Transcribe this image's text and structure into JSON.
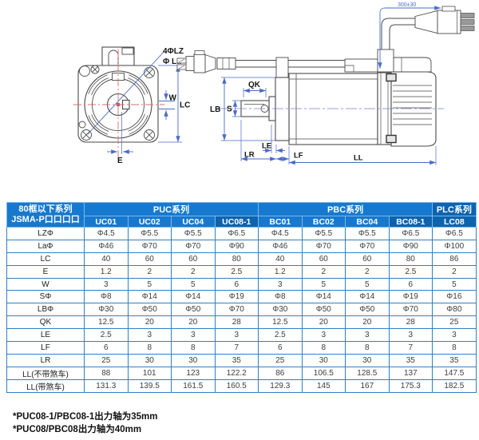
{
  "diagram": {
    "front_labels": {
      "holes": "4ΦLZ",
      "pitch_circle": "Φ La",
      "w": "W",
      "lc": "LC",
      "e": "E"
    },
    "side_labels": {
      "qk": "QK",
      "s": "S",
      "lb": "LB",
      "le": "LE",
      "lr": "LR",
      "lf": "LF",
      "ll": "LL",
      "cable": "300±30"
    }
  },
  "table": {
    "corner_header": {
      "line1": "80框以下系列",
      "line2": "JSMA-P口口口口"
    },
    "groups": [
      {
        "label": "PUC系列",
        "span": 4
      },
      {
        "label": "PBC系列",
        "span": 4
      },
      {
        "label": "PLC系列",
        "span": 1
      }
    ],
    "models": [
      {
        "label": "UC01",
        "highlight": false
      },
      {
        "label": "UC02",
        "highlight": false
      },
      {
        "label": "UC04",
        "highlight": false
      },
      {
        "label": "UC08-1",
        "highlight": true
      },
      {
        "label": "BC01",
        "highlight": false
      },
      {
        "label": "BC02",
        "highlight": false
      },
      {
        "label": "BC04",
        "highlight": false
      },
      {
        "label": "BC08-1",
        "highlight": true
      },
      {
        "label": "LC08",
        "highlight": true
      }
    ],
    "rows": [
      {
        "label": "LZΦ",
        "values": [
          "Φ4.5",
          "Φ5.5",
          "Φ5.5",
          "Φ6.5",
          "Φ4.5",
          "Φ5.5",
          "Φ5.5",
          "Φ6.5",
          "Φ6.5"
        ]
      },
      {
        "label": "LaΦ",
        "values": [
          "Φ46",
          "Φ70",
          "Φ70",
          "Φ90",
          "Φ46",
          "Φ70",
          "Φ70",
          "Φ90",
          "Φ100"
        ]
      },
      {
        "label": "LC",
        "values": [
          "40",
          "60",
          "60",
          "80",
          "40",
          "60",
          "60",
          "80",
          "86"
        ]
      },
      {
        "label": "E",
        "values": [
          "1.2",
          "2",
          "2",
          "2.5",
          "1.2",
          "2",
          "2",
          "2.5",
          "2"
        ]
      },
      {
        "label": "W",
        "values": [
          "3",
          "5",
          "5",
          "6",
          "3",
          "5",
          "5",
          "6",
          "5"
        ]
      },
      {
        "label": "SΦ",
        "values": [
          "Φ8",
          "Φ14",
          "Φ14",
          "Φ19",
          "Φ8",
          "Φ14",
          "Φ14",
          "Φ19",
          "Φ16"
        ]
      },
      {
        "label": "LBΦ",
        "values": [
          "Φ30",
          "Φ50",
          "Φ50",
          "Φ70",
          "Φ30",
          "Φ50",
          "Φ50",
          "Φ70",
          "Φ80"
        ]
      },
      {
        "label": "QK",
        "values": [
          "12.5",
          "20",
          "20",
          "28",
          "12.5",
          "20",
          "20",
          "28",
          "25"
        ]
      },
      {
        "label": "LE",
        "values": [
          "2.5",
          "3",
          "3",
          "3",
          "2.5",
          "3",
          "3",
          "3",
          "3"
        ]
      },
      {
        "label": "LF",
        "values": [
          "6",
          "8",
          "8",
          "7",
          "6",
          "8",
          "8",
          "7",
          "8"
        ]
      },
      {
        "label": "LR",
        "values": [
          "25",
          "30",
          "30",
          "35",
          "25",
          "30",
          "30",
          "35",
          "35"
        ]
      },
      {
        "label": "LL(不带煞车)",
        "values": [
          "88",
          "101",
          "123",
          "122.2",
          "86",
          "106.5",
          "128.5",
          "137",
          "147.5"
        ]
      },
      {
        "label": "LL(带煞车)",
        "values": [
          "131.3",
          "139.5",
          "161.5",
          "160.5",
          "129.3",
          "145",
          "167",
          "175.3",
          "182.5"
        ]
      }
    ]
  },
  "footnotes": [
    "*PUC08-1/PBC08-1出力轴为35mm",
    "*PUC08/PBC08出力轴为40mm"
  ],
  "colors": {
    "header_blue": "#1679cf",
    "header_dark_blue": "#0d63ae",
    "table_border": "#2f80c3",
    "dimension_blue": "#4a6bc9",
    "centerline_red": "#d96b6b"
  }
}
